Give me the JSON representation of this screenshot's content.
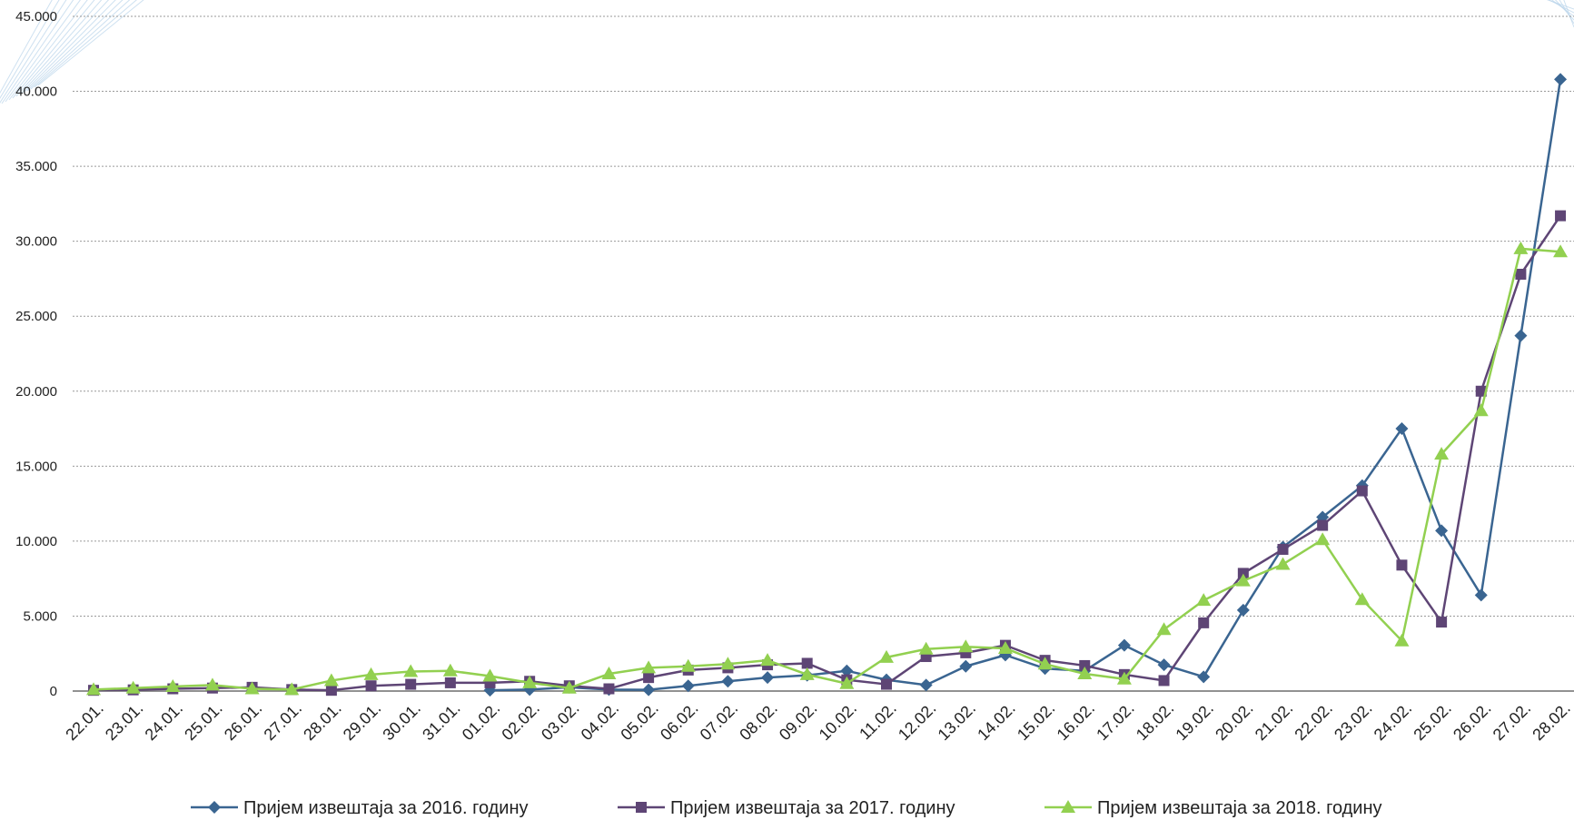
{
  "chart_data": {
    "type": "line",
    "categories": [
      "22.01.",
      "23.01.",
      "24.01.",
      "25.01.",
      "26.01.",
      "27.01.",
      "28.01.",
      "29.01.",
      "30.01.",
      "31.01.",
      "01.02.",
      "02.02.",
      "03.02.",
      "04.02.",
      "05.02.",
      "06.02.",
      "07.02.",
      "08.02.",
      "09.02.",
      "10.02.",
      "11.02.",
      "12.02.",
      "13.02.",
      "14.02.",
      "15.02.",
      "16.02.",
      "17.02.",
      "18.02.",
      "19.02.",
      "20.02.",
      "21.02.",
      "22.02.",
      "23.02.",
      "24.02.",
      "25.02.",
      "26.02.",
      "27.02.",
      "28.02."
    ],
    "yticks": [
      "0",
      "5.000",
      "10.000",
      "15.000",
      "20.000",
      "25.000",
      "30.000",
      "35.000",
      "40.000",
      "45.000"
    ],
    "ylim": [
      0,
      45000
    ],
    "grid": true,
    "legend_position": "bottom",
    "series": [
      {
        "name": "Пријем извештаја за 2016. годину",
        "color": "#3a6591",
        "marker": "diamond",
        "values": [
          null,
          null,
          null,
          null,
          null,
          null,
          null,
          null,
          null,
          null,
          50,
          100,
          250,
          100,
          80,
          350,
          650,
          900,
          1050,
          1350,
          750,
          400,
          1650,
          2400,
          1500,
          1350,
          3050,
          1750,
          950,
          5400,
          9600,
          11600,
          13700,
          17500,
          10700,
          6400,
          23700,
          40800
        ]
      },
      {
        "name": "Пријем извештаја за 2017. годину",
        "color": "#5e4575",
        "marker": "square",
        "values": [
          50,
          80,
          150,
          200,
          250,
          100,
          50,
          350,
          450,
          550,
          550,
          650,
          350,
          150,
          900,
          1400,
          1550,
          1750,
          1850,
          750,
          450,
          2300,
          2550,
          3050,
          2050,
          1700,
          1100,
          700,
          4550,
          7850,
          9450,
          11050,
          13350,
          8400,
          4600,
          20000,
          27800,
          31700
        ]
      },
      {
        "name": "Пријем извештаја за 2018. годину",
        "color": "#92d050",
        "marker": "triangle",
        "values": [
          100,
          200,
          300,
          400,
          150,
          100,
          700,
          1100,
          1300,
          1350,
          1000,
          550,
          200,
          1150,
          1550,
          1650,
          1800,
          2050,
          1100,
          500,
          2250,
          2800,
          2950,
          2850,
          1800,
          1150,
          800,
          4100,
          6050,
          7350,
          8450,
          10100,
          6100,
          3350,
          15800,
          18700,
          29500,
          29300
        ]
      }
    ]
  }
}
